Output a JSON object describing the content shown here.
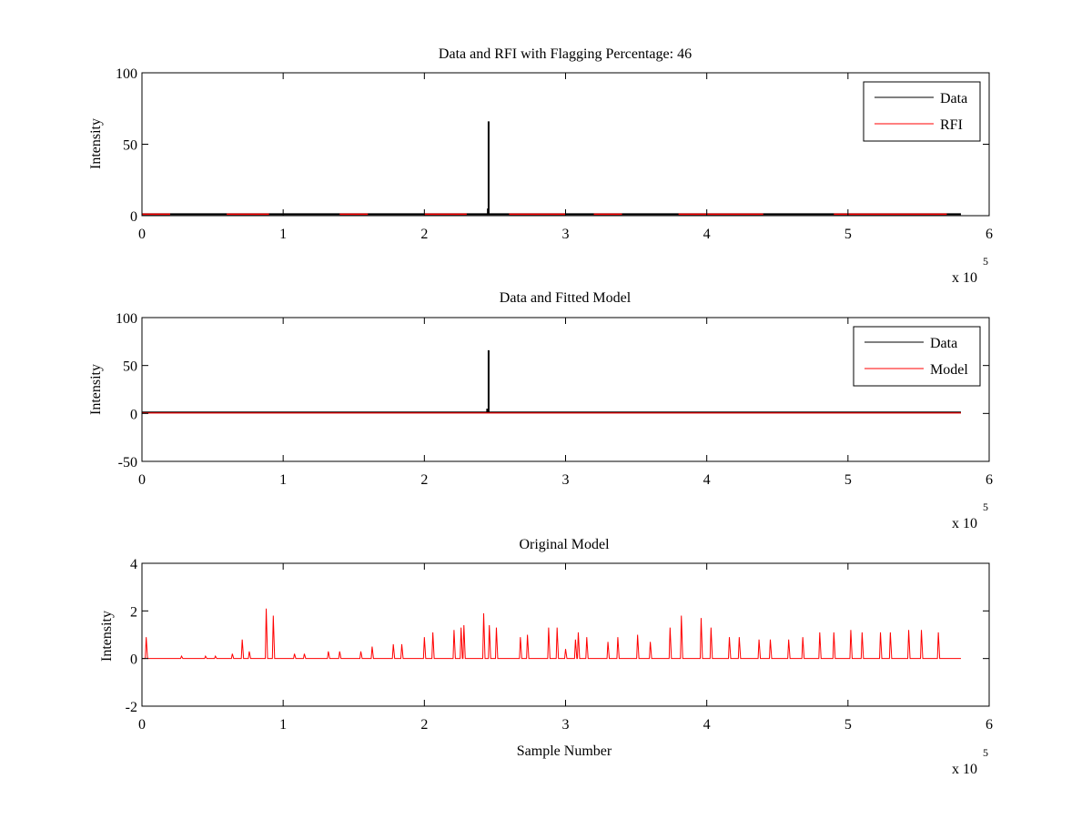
{
  "figure": {
    "background": "#ffffff",
    "data_color": "#000000",
    "rfi_color": "#ff0000",
    "model_color": "#ff0000"
  },
  "chart_data": [
    {
      "type": "line",
      "title": "Data and RFI with Flagging Percentage: 46",
      "xlabel": "",
      "ylabel": "Intensity",
      "xlim": [
        0,
        600000
      ],
      "ylim": [
        0,
        100
      ],
      "xticks": [
        "0",
        "1",
        "2",
        "3",
        "4",
        "5",
        "6"
      ],
      "yticks": [
        "0",
        "50",
        "100"
      ],
      "x_multiplier_label": "x 10",
      "x_multiplier_exp": "5",
      "legend": {
        "position": "top-right",
        "entries": [
          "Data",
          "RFI"
        ]
      },
      "series": [
        {
          "name": "Data",
          "color": "#000000",
          "baseline": 1,
          "spike_points": [
            [
              244000,
              0.8
            ],
            [
              245000,
              5
            ],
            [
              245500,
              66
            ],
            [
              246000,
              1.5
            ],
            [
              247000,
              0.8
            ]
          ]
        },
        {
          "name": "RFI",
          "color": "#ff0000",
          "baseline": 1,
          "segments": [
            [
              0,
              20000
            ],
            [
              60000,
              90000
            ],
            [
              140000,
              160000
            ],
            [
              200000,
              230000
            ],
            [
              260000,
              300000
            ],
            [
              320000,
              340000
            ],
            [
              380000,
              440000
            ],
            [
              490000,
              570000
            ]
          ]
        }
      ],
      "x_end": 580000
    },
    {
      "type": "line",
      "title": "Data and Fitted Model",
      "xlabel": "",
      "ylabel": "Intensity",
      "xlim": [
        0,
        600000
      ],
      "ylim": [
        -50,
        100
      ],
      "xticks": [
        "0",
        "1",
        "2",
        "3",
        "4",
        "5",
        "6"
      ],
      "yticks": [
        "-50",
        "0",
        "50",
        "100"
      ],
      "x_multiplier_label": "x 10",
      "x_multiplier_exp": "5",
      "legend": {
        "position": "top-right",
        "entries": [
          "Data",
          "Model"
        ]
      },
      "series": [
        {
          "name": "Data",
          "color": "#000000",
          "baseline": 1,
          "spike_points": [
            [
              244000,
              1
            ],
            [
              244500,
              5
            ],
            [
              245500,
              66
            ],
            [
              246500,
              1
            ],
            [
              255000,
              2
            ]
          ]
        },
        {
          "name": "Model",
          "color": "#ff0000",
          "baseline": 0.5
        }
      ],
      "x_end": 580000
    },
    {
      "type": "line",
      "title": "Original Model",
      "xlabel": "Sample Number",
      "ylabel": "Intensity",
      "xlim": [
        0,
        600000
      ],
      "ylim": [
        -2,
        4
      ],
      "xticks": [
        "0",
        "1",
        "2",
        "3",
        "4",
        "5",
        "6"
      ],
      "yticks": [
        "-2",
        "0",
        "2",
        "4"
      ],
      "x_multiplier_label": "x 10",
      "x_multiplier_exp": "5",
      "series": [
        {
          "name": "Model",
          "color": "#ff0000",
          "baseline": 0,
          "peaks": [
            [
              3000,
              0.9
            ],
            [
              28000,
              0.1
            ],
            [
              45000,
              0.1
            ],
            [
              52000,
              0.1
            ],
            [
              64000,
              0.2
            ],
            [
              71000,
              0.8
            ],
            [
              76000,
              0.3
            ],
            [
              88000,
              2.1
            ],
            [
              93000,
              1.8
            ],
            [
              108000,
              0.2
            ],
            [
              115000,
              0.2
            ],
            [
              132000,
              0.3
            ],
            [
              140000,
              0.3
            ],
            [
              155000,
              0.3
            ],
            [
              163000,
              0.5
            ],
            [
              178000,
              0.6
            ],
            [
              184000,
              0.6
            ],
            [
              200000,
              0.9
            ],
            [
              206000,
              1.1
            ],
            [
              221000,
              1.2
            ],
            [
              226000,
              1.3
            ],
            [
              228000,
              1.4
            ],
            [
              242000,
              1.9
            ],
            [
              246000,
              1.4
            ],
            [
              251000,
              1.3
            ],
            [
              268000,
              0.9
            ],
            [
              273000,
              1.0
            ],
            [
              288000,
              1.3
            ],
            [
              294000,
              1.3
            ],
            [
              300000,
              0.4
            ],
            [
              307000,
              0.8
            ],
            [
              309000,
              1.1
            ],
            [
              315000,
              0.9
            ],
            [
              330000,
              0.7
            ],
            [
              337000,
              0.9
            ],
            [
              351000,
              1.0
            ],
            [
              360000,
              0.7
            ],
            [
              374000,
              1.3
            ],
            [
              382000,
              1.8
            ],
            [
              396000,
              1.7
            ],
            [
              403000,
              1.3
            ],
            [
              416000,
              0.9
            ],
            [
              423000,
              0.9
            ],
            [
              437000,
              0.8
            ],
            [
              445000,
              0.8
            ],
            [
              458000,
              0.8
            ],
            [
              468000,
              0.9
            ],
            [
              480000,
              1.1
            ],
            [
              490000,
              1.1
            ],
            [
              502000,
              1.2
            ],
            [
              510000,
              1.1
            ],
            [
              523000,
              1.1
            ],
            [
              530000,
              1.1
            ],
            [
              543000,
              1.2
            ],
            [
              552000,
              1.2
            ],
            [
              564000,
              1.1
            ]
          ]
        }
      ],
      "x_end": 580000
    }
  ]
}
